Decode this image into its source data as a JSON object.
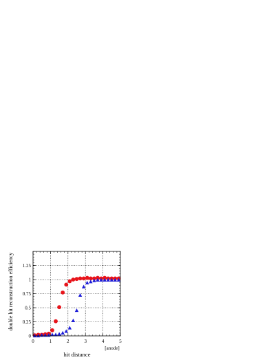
{
  "chart_data": {
    "type": "scatter",
    "xlabel": "hit distance",
    "xunit": "[anode]",
    "ylabel": "double hit reconstruction efficiency",
    "xlim": [
      0,
      5
    ],
    "ylim": [
      0,
      1.5
    ],
    "x_ticks": [
      "0",
      "1",
      "2",
      "3",
      "4",
      "5"
    ],
    "y_ticks": [
      "0",
      "0.25",
      "0.5",
      "0.75",
      "1",
      "1.25"
    ],
    "grid": true,
    "series": [
      {
        "marker": "circle",
        "color": "#e8141b",
        "points": [
          [
            0.1,
            0.01
          ],
          [
            0.3,
            0.02
          ],
          [
            0.5,
            0.02
          ],
          [
            0.7,
            0.03
          ],
          [
            0.9,
            0.04
          ],
          [
            1.1,
            0.1
          ],
          [
            1.3,
            0.26
          ],
          [
            1.5,
            0.51
          ],
          [
            1.7,
            0.77
          ],
          [
            1.9,
            0.91
          ],
          [
            2.1,
            0.97
          ],
          [
            2.3,
            1.0
          ],
          [
            2.5,
            1.01
          ],
          [
            2.7,
            1.02
          ],
          [
            2.9,
            1.02
          ],
          [
            3.1,
            1.03
          ],
          [
            3.3,
            1.02
          ],
          [
            3.5,
            1.02
          ],
          [
            3.7,
            1.03
          ],
          [
            3.9,
            1.02
          ],
          [
            4.1,
            1.03
          ],
          [
            4.3,
            1.02
          ],
          [
            4.5,
            1.02
          ],
          [
            4.7,
            1.02
          ],
          [
            4.9,
            1.02
          ]
        ]
      },
      {
        "marker": "triangle",
        "color": "#1c1cd8",
        "points": [
          [
            0.1,
            0.0
          ],
          [
            0.3,
            0.0
          ],
          [
            0.5,
            0.01
          ],
          [
            0.7,
            0.01
          ],
          [
            0.9,
            0.01
          ],
          [
            1.1,
            0.02
          ],
          [
            1.3,
            0.02
          ],
          [
            1.5,
            0.03
          ],
          [
            1.7,
            0.05
          ],
          [
            1.9,
            0.08
          ],
          [
            2.1,
            0.14
          ],
          [
            2.3,
            0.27
          ],
          [
            2.5,
            0.45
          ],
          [
            2.7,
            0.72
          ],
          [
            2.9,
            0.87
          ],
          [
            3.1,
            0.94
          ],
          [
            3.3,
            0.96
          ],
          [
            3.5,
            0.98
          ],
          [
            3.7,
            0.99
          ],
          [
            3.9,
            0.99
          ],
          [
            4.1,
            0.99
          ],
          [
            4.3,
            0.99
          ],
          [
            4.5,
            0.99
          ],
          [
            4.7,
            0.99
          ],
          [
            4.9,
            0.99
          ]
        ]
      }
    ]
  }
}
